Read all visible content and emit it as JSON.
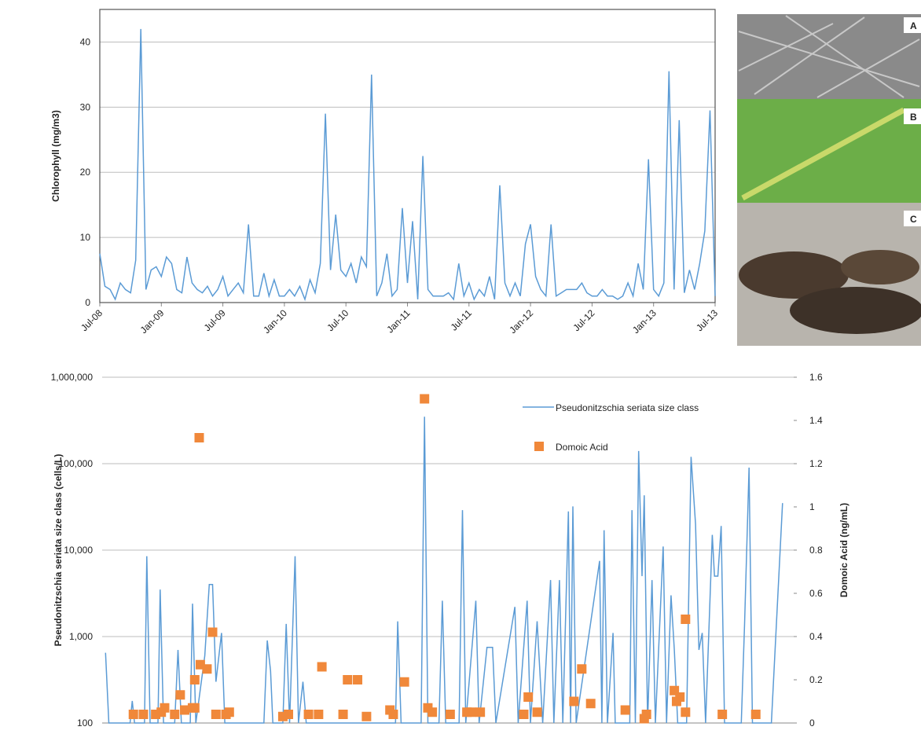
{
  "chart_data": [
    {
      "type": "line",
      "y_label": "Chlorophyll (mg/m3)",
      "xlim": [
        0,
        60
      ],
      "xticks": [
        {
          "value": 0,
          "label": "Jul-08"
        },
        {
          "value": 6,
          "label": "Jan-09"
        },
        {
          "value": 12,
          "label": "Jul-09"
        },
        {
          "value": 18,
          "label": "Jan-10"
        },
        {
          "value": 24,
          "label": "Jul-10"
        },
        {
          "value": 30,
          "label": "Jan-11"
        },
        {
          "value": 36,
          "label": "Jul-11"
        },
        {
          "value": 42,
          "label": "Jan-12"
        },
        {
          "value": 48,
          "label": "Jul-12"
        },
        {
          "value": 54,
          "label": "Jan-13"
        },
        {
          "value": 60,
          "label": "Jul-13"
        }
      ],
      "ylim": [
        0,
        45
      ],
      "yticks": [
        0,
        10,
        20,
        30,
        40
      ],
      "grid": true,
      "x": [
        0,
        0.5,
        1,
        1.5,
        2,
        2.5,
        3,
        3.5,
        4,
        4.5,
        5,
        5.5,
        6,
        6.5,
        7,
        7.5,
        8,
        8.5,
        9,
        9.5,
        10,
        10.5,
        11,
        11.5,
        12,
        12.5,
        13,
        13.5,
        14,
        14.5,
        15,
        15.5,
        16,
        16.5,
        17,
        17.5,
        18,
        18.5,
        19,
        19.5,
        20,
        20.5,
        21,
        21.5,
        22,
        22.5,
        23,
        23.5,
        24,
        24.5,
        25,
        25.5,
        26,
        26.5,
        27,
        27.5,
        28,
        28.5,
        29,
        29.5,
        30,
        30.5,
        31,
        31.5,
        32,
        32.5,
        33,
        33.5,
        34,
        34.5,
        35,
        35.5,
        36,
        36.5,
        37,
        37.5,
        38,
        38.5,
        39,
        39.5,
        40,
        40.5,
        41,
        41.5,
        42,
        42.5,
        43,
        43.5,
        44,
        44.5,
        45,
        45.5,
        46,
        46.5,
        47,
        47.5,
        48,
        48.5,
        49,
        49.5,
        50,
        50.5,
        51,
        51.5,
        52,
        52.5,
        53,
        53.5,
        54,
        54.5,
        55,
        55.5,
        56,
        56.5,
        57,
        57.5,
        58,
        58.5,
        59,
        59.5,
        60
      ],
      "series": [
        {
          "color": "#5b9bd5",
          "values": [
            7.5,
            2.5,
            2,
            0.5,
            3,
            2,
            1.5,
            6.5,
            42,
            2,
            5,
            5.5,
            4,
            7,
            6,
            2,
            1.5,
            7,
            3,
            2,
            1.5,
            2.5,
            1,
            2,
            4,
            1,
            2,
            3,
            1.5,
            12,
            1,
            1,
            4.5,
            1,
            3.5,
            1,
            1,
            2,
            1,
            2.5,
            0.5,
            3.5,
            1.5,
            6,
            29,
            5,
            13.5,
            5,
            4,
            6,
            3,
            7,
            5.5,
            35,
            1,
            3,
            7.5,
            1,
            2,
            14.5,
            3,
            12.5,
            0.5,
            22.5,
            2,
            1,
            1,
            1,
            1.5,
            0.5,
            6,
            1,
            3,
            0.5,
            2,
            1,
            4,
            0.5,
            18,
            3,
            1,
            3,
            1,
            9,
            12,
            4,
            2,
            1,
            12,
            1,
            1.5,
            2,
            2,
            2,
            3,
            1.5,
            1,
            1,
            2,
            1,
            1,
            0.5,
            1,
            3,
            1,
            6,
            2,
            22,
            2,
            1,
            3,
            35.5,
            2,
            28,
            1.5,
            5,
            2,
            6,
            11,
            29.5,
            1
          ]
        }
      ]
    },
    {
      "type": "line",
      "y_label": "Pseudonitzschia seriata size class (cells/L)",
      "y2_label": "Domoic Acid (ng/mL)",
      "log_y": true,
      "xlim": [
        0,
        62
      ],
      "ylim": [
        100,
        1000000
      ],
      "yticks": [
        100,
        {
          "value": 1000,
          "label": "1,000"
        },
        {
          "value": 10000,
          "label": "10,000"
        },
        {
          "value": 100000,
          "label": "100,000"
        },
        {
          "value": 1000000,
          "label": "1,000,000"
        }
      ],
      "y2lim": [
        0,
        1.6
      ],
      "y2ticks": [
        0,
        0.2,
        0.4,
        0.6,
        0.8,
        1,
        1.2,
        1.4,
        1.6
      ],
      "grid": true,
      "legend": "top-right",
      "series": [
        {
          "name": "Pseudonitzschia seriata size class",
          "color": "#5b9bd5",
          "x": [
            0.3,
            0.6,
            2.5,
            2.7,
            2.9,
            3.8,
            4.0,
            4.3,
            5.0,
            5.2,
            5.5,
            6.5,
            6.8,
            7.1,
            7.9,
            8.1,
            8.4,
            9.2,
            9.6,
            9.9,
            10.2,
            10.7,
            11.0,
            14.5,
            14.8,
            15.1,
            15.3,
            16.2,
            16.5,
            16.8,
            17.3,
            17.6,
            18.0,
            18.3,
            26.3,
            26.5,
            26.8,
            28.6,
            28.9,
            29.2,
            30.2,
            30.5,
            30.8,
            32.0,
            32.3,
            32.6,
            33.5,
            33.8,
            34.5,
            35.0,
            35.3,
            37.0,
            37.3,
            38.1,
            38.4,
            39.0,
            39.5,
            40.2,
            40.5,
            41.0,
            41.3,
            41.8,
            42.0,
            42.2,
            42.5,
            44.6,
            44.8,
            45.0,
            45.3,
            45.8,
            46.0,
            47.3,
            47.5,
            47.8,
            48.1,
            48.4,
            48.6,
            48.9,
            49.3,
            49.6,
            50.3,
            50.6,
            51.0,
            51.3,
            51.6,
            52.4,
            52.8,
            53.2,
            53.5,
            53.8,
            54.1,
            54.7,
            54.9,
            55.2,
            55.5,
            55.8,
            57.3,
            57.6,
            58.0,
            58.3,
            60.0,
            61.0
          ],
          "values": [
            650,
            100,
            100,
            180,
            100,
            100,
            8500,
            100,
            100,
            3500,
            100,
            100,
            700,
            100,
            100,
            2400,
            100,
            600,
            4000,
            4000,
            300,
            1100,
            100,
            100,
            900,
            400,
            100,
            100,
            1400,
            100,
            8500,
            100,
            300,
            100,
            100,
            1500,
            100,
            100,
            350000,
            100,
            100,
            2600,
            100,
            100,
            29000,
            100,
            2600,
            100,
            750,
            750,
            100,
            2200,
            100,
            2600,
            100,
            1500,
            100,
            4500,
            100,
            4500,
            100,
            28000,
            100,
            32000,
            100,
            7500,
            100,
            17000,
            100,
            1100,
            100,
            100,
            29000,
            100,
            140000,
            5000,
            43000,
            100,
            4500,
            100,
            11000,
            100,
            3000,
            700,
            100,
            100,
            120000,
            20000,
            700,
            1100,
            100,
            15000,
            5000,
            5000,
            19000,
            100,
            100,
            1400,
            90000,
            100,
            100,
            35000
          ]
        },
        {
          "name": "Domoic Acid",
          "type": "scatter",
          "axis": "y2",
          "color": "#f0883a",
          "x": [
            2.8,
            3.7,
            4.8,
            5.3,
            5.6,
            6.5,
            7.0,
            7.4,
            8.1,
            8.3,
            8.3,
            8.7,
            8.8,
            9.4,
            9.9,
            10.2,
            11.1,
            11.4,
            16.2,
            16.7,
            18.5,
            19.4,
            19.7,
            21.6,
            22.0,
            22.9,
            23.7,
            25.8,
            26.1,
            27.1,
            28.9,
            29.2,
            29.6,
            31.2,
            32.7,
            33.1,
            33.9,
            37.8,
            38.2,
            39.0,
            42.3,
            43.0,
            43.8,
            46.9,
            48.6,
            48.8,
            51.3,
            51.5,
            51.8,
            52.3,
            52.3,
            55.6,
            58.6
          ],
          "values": [
            0.04,
            0.04,
            0.04,
            0.05,
            0.07,
            0.04,
            0.13,
            0.06,
            0.07,
            0.07,
            0.2,
            1.32,
            0.27,
            0.25,
            0.42,
            0.04,
            0.04,
            0.05,
            0.03,
            0.04,
            0.04,
            0.04,
            0.26,
            0.04,
            0.2,
            0.2,
            0.03,
            0.06,
            0.04,
            0.19,
            1.5,
            0.07,
            0.05,
            0.04,
            0.05,
            0.05,
            0.05,
            0.04,
            0.12,
            0.05,
            0.1,
            0.25,
            0.09,
            0.06,
            0.02,
            0.04,
            0.15,
            0.1,
            0.12,
            0.05,
            0.48,
            0.04,
            0.04
          ]
        }
      ]
    }
  ],
  "image_labels": [
    "A",
    "B",
    "C"
  ]
}
